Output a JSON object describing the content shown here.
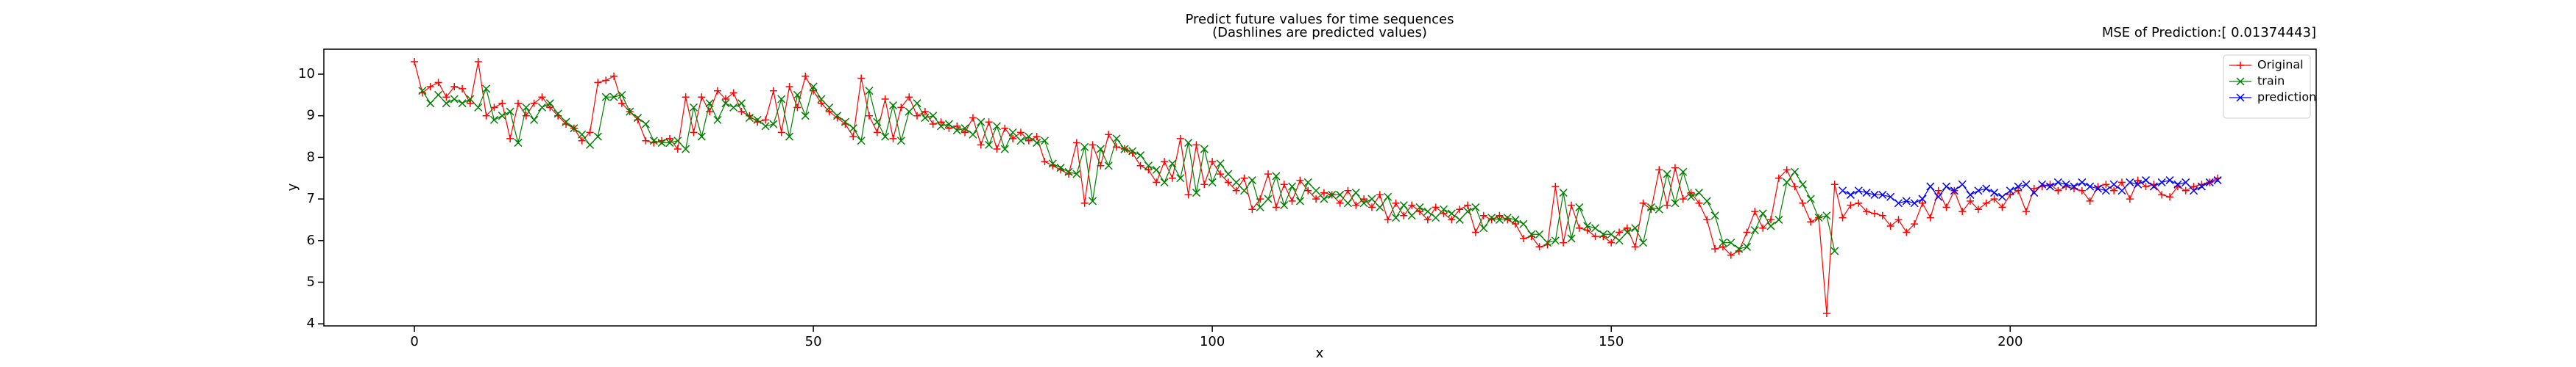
{
  "chart_data": {
    "type": "line",
    "title": "Predict future values for time sequences",
    "subtitle": "(Dashlines are predicted values)",
    "annotation": "MSE of Prediction:[ 0.01374443]",
    "x_label": "x",
    "y_label": "y",
    "xlim": [
      -11.35,
      238.35
    ],
    "ylim": [
      3.95,
      10.6
    ],
    "xticks": [
      0,
      50,
      100,
      150,
      200
    ],
    "yticks": [
      4,
      5,
      6,
      7,
      8,
      9,
      10
    ],
    "legend": "upper right",
    "x": [
      0,
      1,
      2,
      3,
      4,
      5,
      6,
      7,
      8,
      9,
      10,
      11,
      12,
      13,
      14,
      15,
      16,
      17,
      18,
      19,
      20,
      21,
      22,
      23,
      24,
      25,
      26,
      27,
      28,
      29,
      30,
      31,
      32,
      33,
      34,
      35,
      36,
      37,
      38,
      39,
      40,
      41,
      42,
      43,
      44,
      45,
      46,
      47,
      48,
      49,
      50,
      51,
      52,
      53,
      54,
      55,
      56,
      57,
      58,
      59,
      60,
      61,
      62,
      63,
      64,
      65,
      66,
      67,
      68,
      69,
      70,
      71,
      72,
      73,
      74,
      75,
      76,
      77,
      78,
      79,
      80,
      81,
      82,
      83,
      84,
      85,
      86,
      87,
      88,
      89,
      90,
      91,
      92,
      93,
      94,
      95,
      96,
      97,
      98,
      99,
      100,
      101,
      102,
      103,
      104,
      105,
      106,
      107,
      108,
      109,
      110,
      111,
      112,
      113,
      114,
      115,
      116,
      117,
      118,
      119,
      120,
      121,
      122,
      123,
      124,
      125,
      126,
      127,
      128,
      129,
      130,
      131,
      132,
      133,
      134,
      135,
      136,
      137,
      138,
      139,
      140,
      141,
      142,
      143,
      144,
      145,
      146,
      147,
      148,
      149,
      150,
      151,
      152,
      153,
      154,
      155,
      156,
      157,
      158,
      159,
      160,
      161,
      162,
      163,
      164,
      165,
      166,
      167,
      168,
      169,
      170,
      171,
      172,
      173,
      174,
      175,
      176,
      177,
      178,
      179,
      180,
      181,
      182,
      183,
      184,
      185,
      186,
      187,
      188,
      189,
      190,
      191,
      192,
      193,
      194,
      195,
      196,
      197,
      198,
      199,
      200,
      201,
      202,
      203,
      204,
      205,
      206,
      207,
      208,
      209,
      210,
      211,
      212,
      213,
      214,
      215,
      216,
      217,
      218,
      219,
      220,
      221,
      222,
      223,
      224,
      225,
      226
    ],
    "series": [
      {
        "name": "Original",
        "color": "#ff0000",
        "marker": "+",
        "values": [
          10.3,
          9.55,
          9.7,
          9.8,
          9.45,
          9.7,
          9.65,
          9.3,
          10.3,
          9.0,
          9.2,
          9.3,
          8.45,
          9.3,
          9.0,
          9.3,
          9.45,
          9.2,
          9.0,
          8.8,
          8.7,
          8.4,
          8.6,
          9.8,
          9.85,
          9.95,
          9.3,
          9.1,
          8.9,
          8.4,
          8.35,
          8.4,
          8.45,
          8.2,
          9.45,
          8.6,
          9.45,
          9.1,
          9.6,
          9.4,
          9.55,
          9.1,
          9.0,
          8.85,
          8.9,
          9.6,
          8.6,
          9.7,
          9.2,
          9.95,
          9.6,
          9.3,
          9.1,
          8.95,
          8.8,
          8.5,
          9.9,
          9.0,
          8.6,
          9.4,
          8.45,
          9.2,
          9.45,
          9.0,
          9.1,
          8.8,
          8.85,
          8.7,
          8.75,
          8.6,
          8.95,
          8.3,
          8.85,
          8.2,
          8.7,
          8.45,
          8.6,
          8.4,
          8.5,
          7.9,
          7.8,
          7.7,
          7.6,
          8.35,
          6.9,
          8.3,
          7.8,
          8.55,
          8.25,
          8.2,
          8.1,
          7.8,
          7.7,
          7.4,
          7.9,
          7.5,
          8.45,
          7.1,
          8.3,
          7.35,
          7.9,
          7.6,
          7.4,
          7.2,
          7.5,
          6.75,
          7.0,
          7.6,
          6.8,
          7.35,
          6.95,
          7.45,
          7.2,
          7.0,
          7.15,
          7.1,
          6.9,
          7.2,
          6.85,
          7.0,
          6.8,
          7.1,
          6.5,
          6.9,
          6.6,
          6.85,
          6.7,
          6.5,
          6.8,
          6.65,
          6.5,
          6.75,
          6.85,
          6.2,
          6.6,
          6.5,
          6.6,
          6.5,
          6.4,
          6.05,
          6.1,
          5.85,
          5.9,
          7.3,
          5.95,
          6.85,
          6.3,
          6.25,
          6.1,
          6.1,
          5.95,
          6.2,
          6.3,
          5.85,
          6.9,
          6.75,
          7.7,
          6.85,
          7.75,
          7.0,
          7.15,
          6.9,
          6.5,
          5.8,
          5.85,
          5.65,
          5.75,
          6.2,
          6.7,
          6.3,
          6.5,
          7.5,
          7.7,
          7.3,
          6.9,
          6.45,
          6.55,
          4.25,
          7.35,
          6.55,
          6.85,
          6.9,
          6.7,
          6.65,
          6.6,
          6.35,
          6.5,
          6.2,
          6.4,
          6.9,
          6.55,
          7.2,
          6.8,
          7.2,
          6.7,
          6.95,
          6.75,
          6.9,
          7.0,
          6.8,
          7.1,
          7.2,
          6.7,
          7.25,
          7.3,
          7.35,
          7.2,
          7.3,
          7.25,
          7.2,
          6.95,
          7.3,
          7.35,
          7.2,
          7.4,
          7.0,
          7.45,
          7.3,
          7.35,
          7.1,
          7.05,
          7.3,
          7.2,
          7.3,
          7.35,
          7.4,
          7.5
        ]
      },
      {
        "name": "train",
        "color": "#008000",
        "marker": "x",
        "values": [
          null,
          9.6,
          9.3,
          9.5,
          9.3,
          9.4,
          9.3,
          9.4,
          9.2,
          9.65,
          8.9,
          9.0,
          9.1,
          8.35,
          9.2,
          8.9,
          9.2,
          9.3,
          9.05,
          8.85,
          8.7,
          8.55,
          8.3,
          8.5,
          9.45,
          9.45,
          9.5,
          9.1,
          8.95,
          8.8,
          8.4,
          8.35,
          8.35,
          8.4,
          8.2,
          9.2,
          8.5,
          9.3,
          8.9,
          9.3,
          9.2,
          9.3,
          8.95,
          8.9,
          8.75,
          8.8,
          9.4,
          8.5,
          9.5,
          9.0,
          9.7,
          9.4,
          9.2,
          9.0,
          8.85,
          8.7,
          8.4,
          9.6,
          8.85,
          8.5,
          9.25,
          8.4,
          9.1,
          9.3,
          8.95,
          9.0,
          8.75,
          8.8,
          8.65,
          8.7,
          8.55,
          8.85,
          8.3,
          8.75,
          8.2,
          8.6,
          8.4,
          8.5,
          8.35,
          8.4,
          7.85,
          7.75,
          7.65,
          7.6,
          8.25,
          6.95,
          8.2,
          7.8,
          8.45,
          8.2,
          8.15,
          8.05,
          7.8,
          7.7,
          7.4,
          7.85,
          7.5,
          8.35,
          7.15,
          8.2,
          7.4,
          7.85,
          7.6,
          7.4,
          7.2,
          7.45,
          6.8,
          7.0,
          7.55,
          6.85,
          7.3,
          6.95,
          7.4,
          7.2,
          7.0,
          7.1,
          7.1,
          6.9,
          7.15,
          6.9,
          7.0,
          6.8,
          7.05,
          6.55,
          6.85,
          6.6,
          6.8,
          6.7,
          6.55,
          6.75,
          6.65,
          6.5,
          6.7,
          6.8,
          6.3,
          6.55,
          6.5,
          6.55,
          6.5,
          6.4,
          6.15,
          6.15,
          5.95,
          6.0,
          7.15,
          6.05,
          6.8,
          6.35,
          6.3,
          6.15,
          6.15,
          6.0,
          6.2,
          6.3,
          5.95,
          6.8,
          6.75,
          7.6,
          6.9,
          7.65,
          7.05,
          7.15,
          6.95,
          6.6,
          5.95,
          5.95,
          5.8,
          5.85,
          6.25,
          6.65,
          6.35,
          6.5,
          7.4,
          7.65,
          7.35,
          7.0,
          6.55,
          6.6,
          5.75,
          null,
          null,
          null,
          null,
          null,
          null,
          null,
          null,
          null,
          null,
          null,
          null,
          null,
          null,
          null,
          null,
          null,
          null,
          null,
          null,
          null,
          null,
          null,
          null,
          null,
          null,
          null,
          null,
          null,
          null,
          null,
          null,
          null,
          null,
          null,
          null,
          null,
          null,
          null,
          null,
          null,
          null,
          null,
          null,
          null,
          null,
          null,
          null
        ]
      },
      {
        "name": "prediction",
        "color": "#0000ff",
        "marker": "x",
        "values": [
          null,
          null,
          null,
          null,
          null,
          null,
          null,
          null,
          null,
          null,
          null,
          null,
          null,
          null,
          null,
          null,
          null,
          null,
          null,
          null,
          null,
          null,
          null,
          null,
          null,
          null,
          null,
          null,
          null,
          null,
          null,
          null,
          null,
          null,
          null,
          null,
          null,
          null,
          null,
          null,
          null,
          null,
          null,
          null,
          null,
          null,
          null,
          null,
          null,
          null,
          null,
          null,
          null,
          null,
          null,
          null,
          null,
          null,
          null,
          null,
          null,
          null,
          null,
          null,
          null,
          null,
          null,
          null,
          null,
          null,
          null,
          null,
          null,
          null,
          null,
          null,
          null,
          null,
          null,
          null,
          null,
          null,
          null,
          null,
          null,
          null,
          null,
          null,
          null,
          null,
          null,
          null,
          null,
          null,
          null,
          null,
          null,
          null,
          null,
          null,
          null,
          null,
          null,
          null,
          null,
          null,
          null,
          null,
          null,
          null,
          null,
          null,
          null,
          null,
          null,
          null,
          null,
          null,
          null,
          null,
          null,
          null,
          null,
          null,
          null,
          null,
          null,
          null,
          null,
          null,
          null,
          null,
          null,
          null,
          null,
          null,
          null,
          null,
          null,
          null,
          null,
          null,
          null,
          null,
          null,
          null,
          null,
          null,
          null,
          null,
          null,
          null,
          null,
          null,
          null,
          null,
          null,
          null,
          null,
          null,
          null,
          null,
          null,
          null,
          null,
          null,
          null,
          null,
          null,
          null,
          null,
          null,
          null,
          null,
          null,
          null,
          null,
          null,
          null,
          7.2,
          7.1,
          7.2,
          7.15,
          7.1,
          7.1,
          7.05,
          6.9,
          6.95,
          6.9,
          7.0,
          7.3,
          7.05,
          7.3,
          7.2,
          7.35,
          7.1,
          7.2,
          7.25,
          7.15,
          7.05,
          7.2,
          7.3,
          7.35,
          7.15,
          7.35,
          7.3,
          7.4,
          7.35,
          7.3,
          7.4,
          7.3,
          7.25,
          7.2,
          7.35,
          7.2,
          7.4,
          7.35,
          7.45,
          7.3,
          7.4,
          7.45,
          7.35,
          7.4,
          7.2,
          7.3,
          7.4,
          7.45
        ]
      }
    ]
  }
}
